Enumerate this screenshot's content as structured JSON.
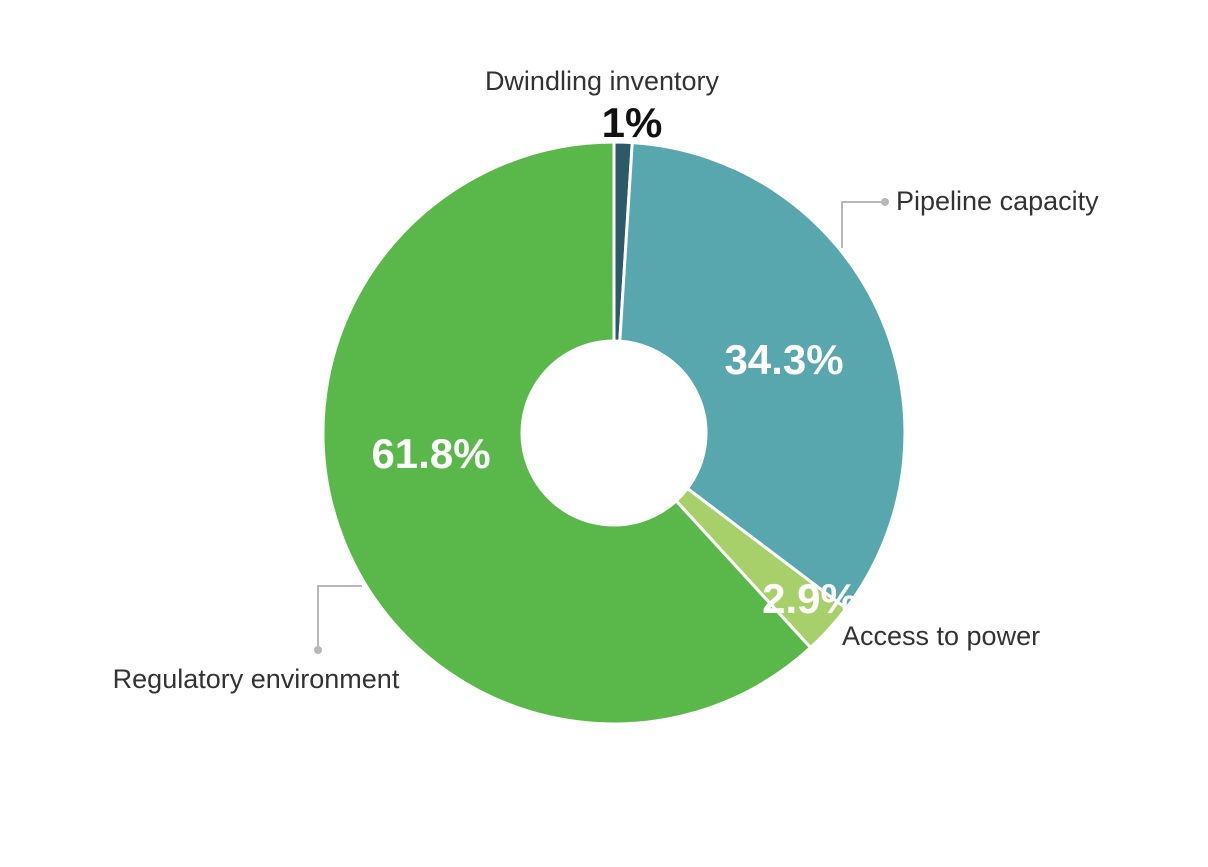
{
  "chart_data": {
    "type": "pie",
    "donut": true,
    "slices": [
      {
        "label": "Dwindling inventory",
        "value": 1,
        "value_label": "1%",
        "color": "#2c5a66"
      },
      {
        "label": "Pipeline capacity",
        "value": 34.3,
        "value_label": "34.3%",
        "color": "#58a6ae"
      },
      {
        "label": "Access to power",
        "value": 2.9,
        "value_label": "2.9%",
        "color": "#a8d06a"
      },
      {
        "label": "Regulatory environment",
        "value": 61.8,
        "value_label": "61.8%",
        "color": "#5ab84a"
      }
    ],
    "legend": "none"
  }
}
